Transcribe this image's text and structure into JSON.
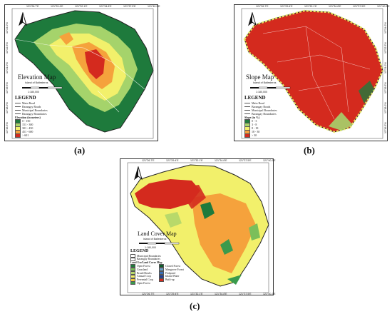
{
  "panels": {
    "a": {
      "caption": "(a)",
      "title": "Elevation Map",
      "subtitle": "Island of Ballesteros",
      "legend_title": "LEGEND",
      "boundaries": [
        "Main Road",
        "Barangay Roads",
        "Municipal Boundaries",
        "Barangay Boundaries"
      ],
      "elevation_title": "Elevation (in meters)",
      "elevation_classes": [
        {
          "label": "0 - 150",
          "color": "#1e7a3c"
        },
        {
          "label": "151 - 300",
          "color": "#a5d36b"
        },
        {
          "label": "301 - 450",
          "color": "#f2f06b"
        },
        {
          "label": "451 - 600",
          "color": "#f5a23c"
        },
        {
          "label": "> 601",
          "color": "#d42a1e"
        }
      ],
      "scale": "1:180,000",
      "top_coords": [
        "121°26.7'E",
        "121°29.4'E",
        "121°32.1'E",
        "121°34.8'E",
        "121°37.5'E",
        "121°40.2'E"
      ],
      "left_coords": [
        "13°24.0'N",
        "13°22.5'N",
        "13°21.0'N",
        "13°19.5'N",
        "13°18.0'N",
        "13°16.5'N"
      ]
    },
    "b": {
      "caption": "(b)",
      "title": "Slope Map",
      "subtitle": "Island of Ballesteros",
      "legend_title": "LEGEND",
      "boundaries": [
        "Main Road",
        "Barangay Roads",
        "Municipal Boundaries",
        "Barangay Boundaries"
      ],
      "slope_title": "Slope (in %)",
      "slope_classes": [
        {
          "label": "0 - 3",
          "color": "#1e7a3c"
        },
        {
          "label": "3 - 8",
          "color": "#a5d36b"
        },
        {
          "label": "8 - 18",
          "color": "#f2f06b"
        },
        {
          "label": "18 - 30",
          "color": "#f5a23c"
        },
        {
          "label": "> 30",
          "color": "#d42a1e"
        }
      ],
      "scale": "1:180,000",
      "top_coords": [
        "121°26.7'E",
        "121°29.4'E",
        "121°32.1'E",
        "121°34.8'E",
        "121°37.5'E",
        "121°40.2'E"
      ],
      "right_coords": [
        "13°24.0'N",
        "13°22.5'N",
        "13°21.0'N",
        "13°19.5'N",
        "13°18.0'N",
        "13°16.5'N"
      ]
    },
    "c": {
      "caption": "(c)",
      "title": "Land Cover Map",
      "subtitle": "Island of Ballesteros",
      "legend_title": "LEGEND",
      "boundaries": [
        "Municipal Boundaries",
        "Barangay Boundaries"
      ],
      "landcover_title": "Land Use/Land Cover Map",
      "landcover_classes": [
        {
          "label": "Open Forest",
          "color": "#1e7a3c"
        },
        {
          "label": "Grassland",
          "color": "#7bbf5a"
        },
        {
          "label": "Brush/Shrubs",
          "color": "#b8d96a"
        },
        {
          "label": "Annual Crop",
          "color": "#f2f06b"
        },
        {
          "label": "Perennial Crop",
          "color": "#f5c43c"
        },
        {
          "label": "Open Forest",
          "color": "#3a9a4c"
        },
        {
          "label": "Closed Forest",
          "color": "#0f5a2a"
        },
        {
          "label": "Mangrove Forest",
          "color": "#6aa0c8"
        },
        {
          "label": "Fishpond",
          "color": "#3a70b8"
        },
        {
          "label": "Inland Water",
          "color": "#1e3f9a"
        },
        {
          "label": "Built-up",
          "color": "#d42a1e"
        }
      ],
      "scale": "1:180,000",
      "top_coords": [
        "121°26.7'E",
        "121°29.4'E",
        "121°32.1'E",
        "121°34.8'E",
        "121°37.5'E",
        "121°40.2'E"
      ],
      "bottom_coords": [
        "121°26.7'E",
        "121°29.4'E",
        "121°32.1'E",
        "121°34.8'E",
        "121°37.5'E",
        "121°40.2'E"
      ]
    }
  },
  "colors": {
    "dark_green": "#1e7a3c",
    "light_green": "#a5d36b",
    "yellow": "#f2f06b",
    "orange": "#f5a23c",
    "red": "#d42a1e"
  },
  "icons": [
    "north-arrow-icon"
  ]
}
